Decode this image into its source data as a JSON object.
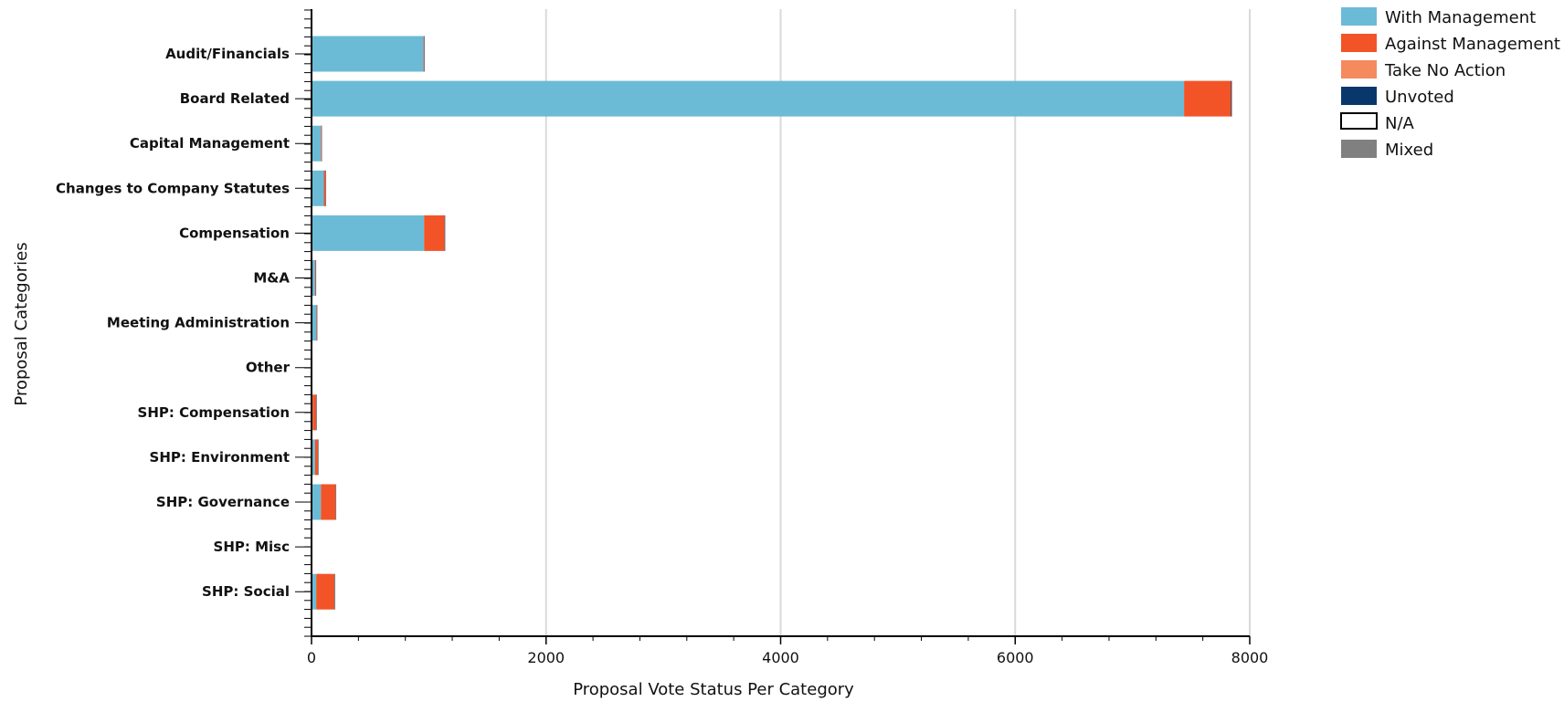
{
  "chart_data": {
    "type": "bar",
    "orientation": "horizontal",
    "stacked": true,
    "xlabel": "Proposal Vote Status Per Category",
    "ylabel": "Proposal Categories",
    "xlim": [
      0,
      8000
    ],
    "xticks": [
      0,
      2000,
      4000,
      6000,
      8000
    ],
    "grid": true,
    "legend_position": "top-right",
    "categories": [
      "Audit/Financials",
      "Board Related",
      "Capital Management",
      "Changes to Company Statutes",
      "Compensation",
      "M&A",
      "Meeting Administration",
      "Other",
      "SHP: Compensation",
      "SHP: Environment",
      "SHP: Governance",
      "SHP: Misc",
      "SHP: Social"
    ],
    "series": [
      {
        "name": "With Management",
        "color": "#6BBBD6",
        "values": [
          955,
          7440,
          80,
          105,
          960,
          30,
          40,
          5,
          10,
          30,
          80,
          0,
          40
        ]
      },
      {
        "name": "Against Management",
        "color": "#F25428",
        "values": [
          5,
          400,
          5,
          15,
          175,
          5,
          5,
          0,
          30,
          25,
          125,
          0,
          155
        ]
      },
      {
        "name": "Take No Action",
        "color": "#F48A5E",
        "values": [
          0,
          0,
          0,
          0,
          0,
          0,
          0,
          0,
          0,
          0,
          0,
          0,
          0
        ]
      },
      {
        "name": "Unvoted",
        "color": "#08386B",
        "values": [
          2,
          5,
          1,
          1,
          2,
          1,
          1,
          0,
          1,
          1,
          2,
          0,
          2
        ]
      },
      {
        "name": "N/A",
        "color": "#FFFFFF",
        "values": [
          0,
          0,
          0,
          0,
          0,
          0,
          0,
          0,
          0,
          0,
          0,
          0,
          0
        ]
      },
      {
        "name": "Mixed",
        "color": "#808080",
        "values": [
          3,
          5,
          2,
          2,
          3,
          2,
          2,
          0,
          2,
          3,
          3,
          0,
          3
        ]
      }
    ]
  }
}
